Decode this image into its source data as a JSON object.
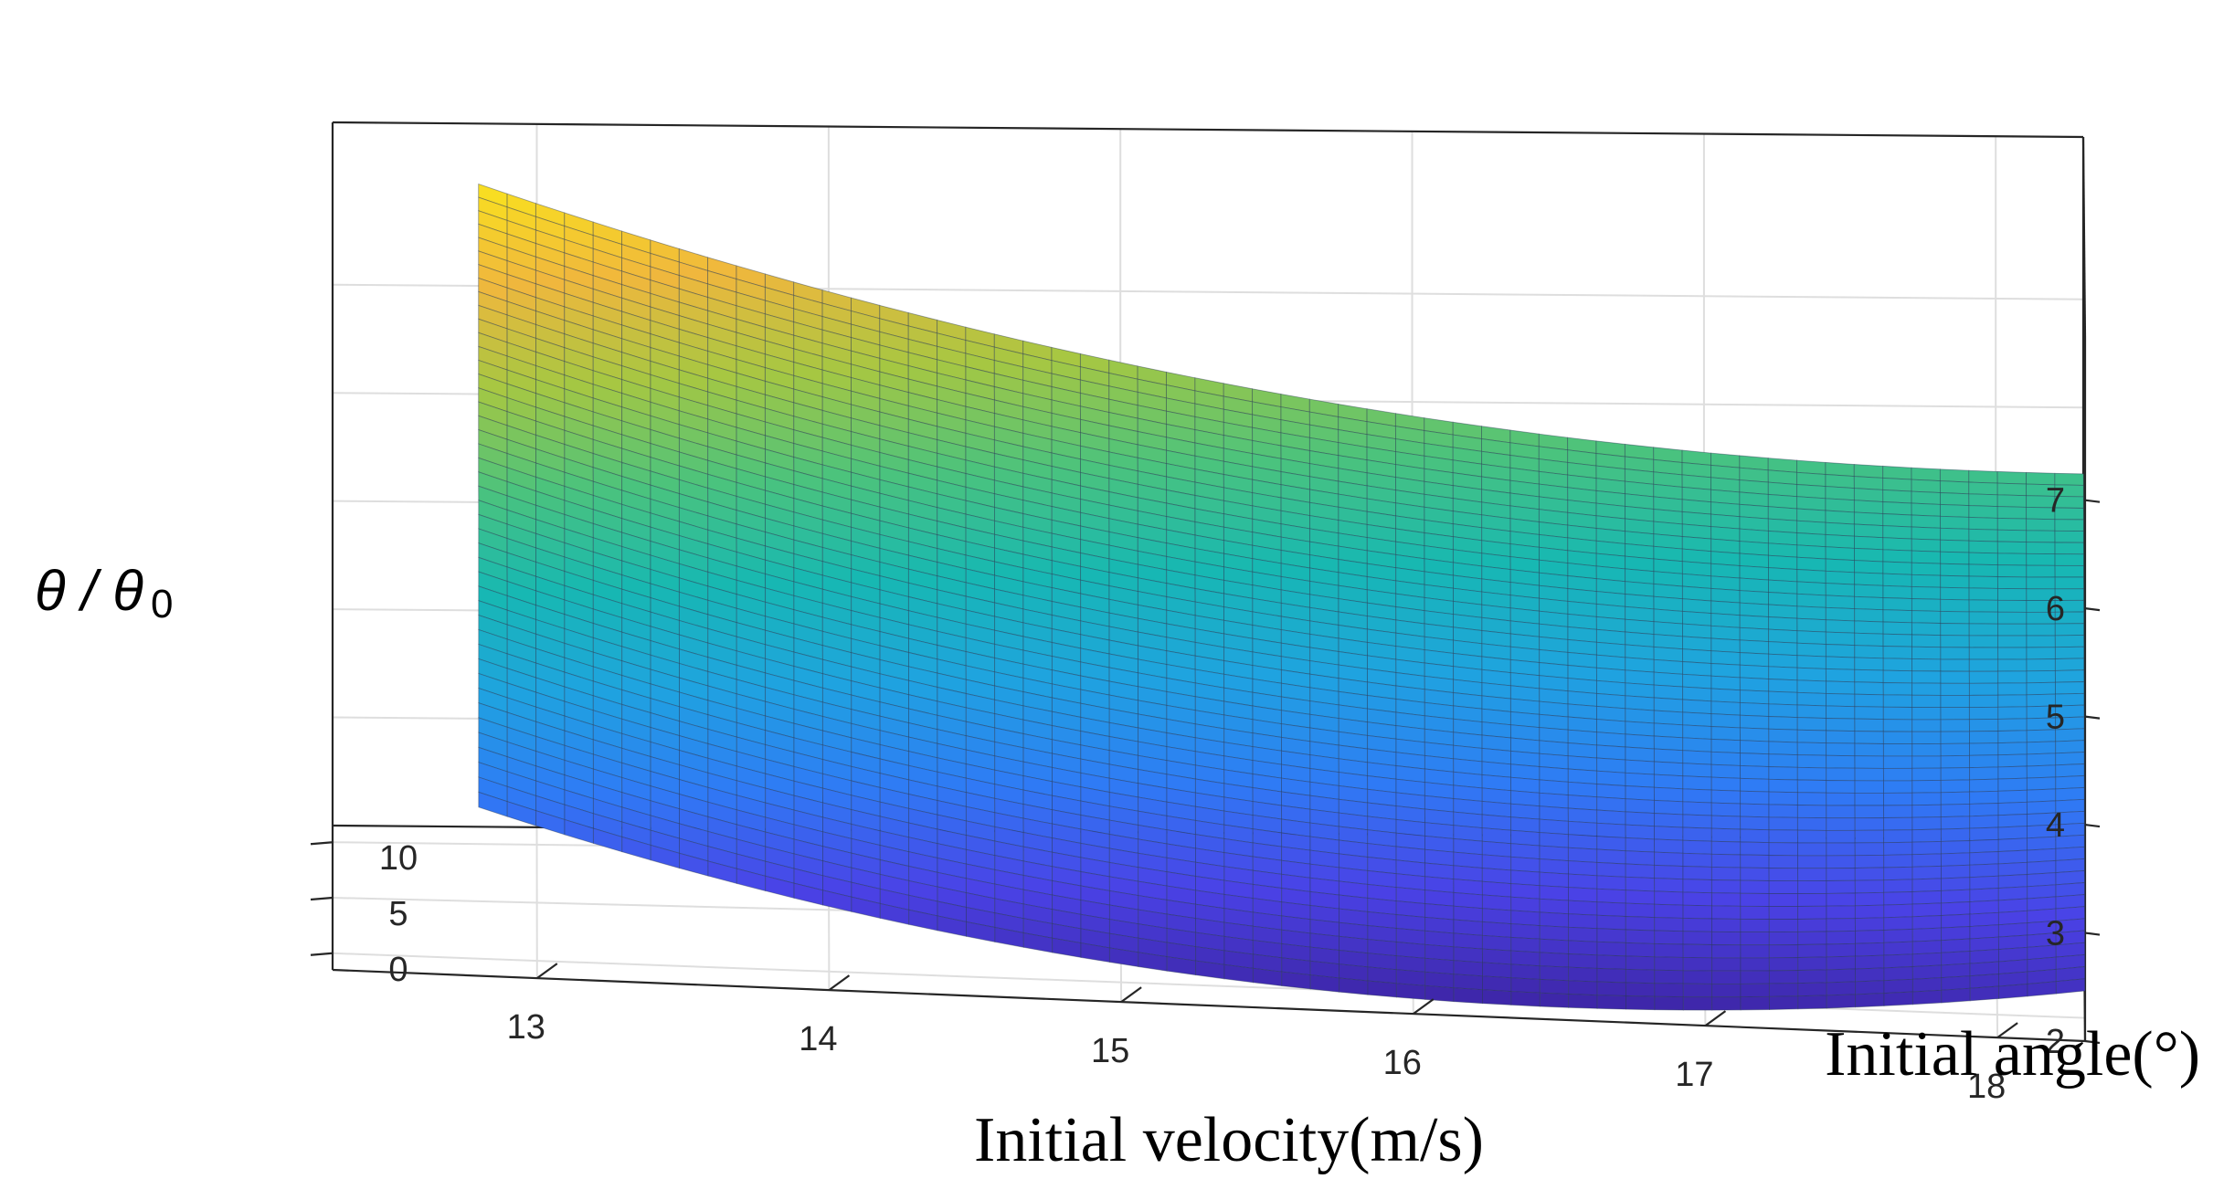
{
  "chart_data": {
    "type": "surface",
    "title": "",
    "xlabel": "Initial velocity(m/s)",
    "ylabel": "Initial angle(°)",
    "zlabel": "θ / θ0",
    "zlabel_parts": {
      "main": "θ / θ",
      "sub": "0"
    },
    "x_ticks": [
      18,
      17,
      16,
      15,
      14,
      13
    ],
    "y_ticks": [
      0,
      5,
      10
    ],
    "z_ticks": [
      2,
      3,
      4,
      5,
      6,
      7
    ],
    "xlim": [
      12.3,
      18.3
    ],
    "ylim": [
      -1.5,
      11.5
    ],
    "zlim": [
      2,
      8.5
    ],
    "surface_x_range": [
      12.8,
      18.3
    ],
    "surface_y_range": [
      0,
      10
    ],
    "corner_values": [
      {
        "velocity": 18.3,
        "angle": 0,
        "ratio": 2.25
      },
      {
        "velocity": 12.8,
        "angle": 0,
        "ratio": 3.4
      },
      {
        "velocity": 18.3,
        "angle": 10,
        "ratio": 5.6
      },
      {
        "velocity": 12.8,
        "angle": 10,
        "ratio": 8.1
      }
    ],
    "min_point": {
      "velocity": 16.0,
      "angle": 0,
      "ratio": 1.95
    },
    "colormap": "parula",
    "colormap_stops": [
      "#3e26a8",
      "#4a42e6",
      "#2f7bf5",
      "#1fa3e0",
      "#17b8b2",
      "#4cc37c",
      "#a6c742",
      "#f0b73d",
      "#f9e21e"
    ],
    "grid": true,
    "grid_resolution": [
      56,
      44
    ]
  }
}
